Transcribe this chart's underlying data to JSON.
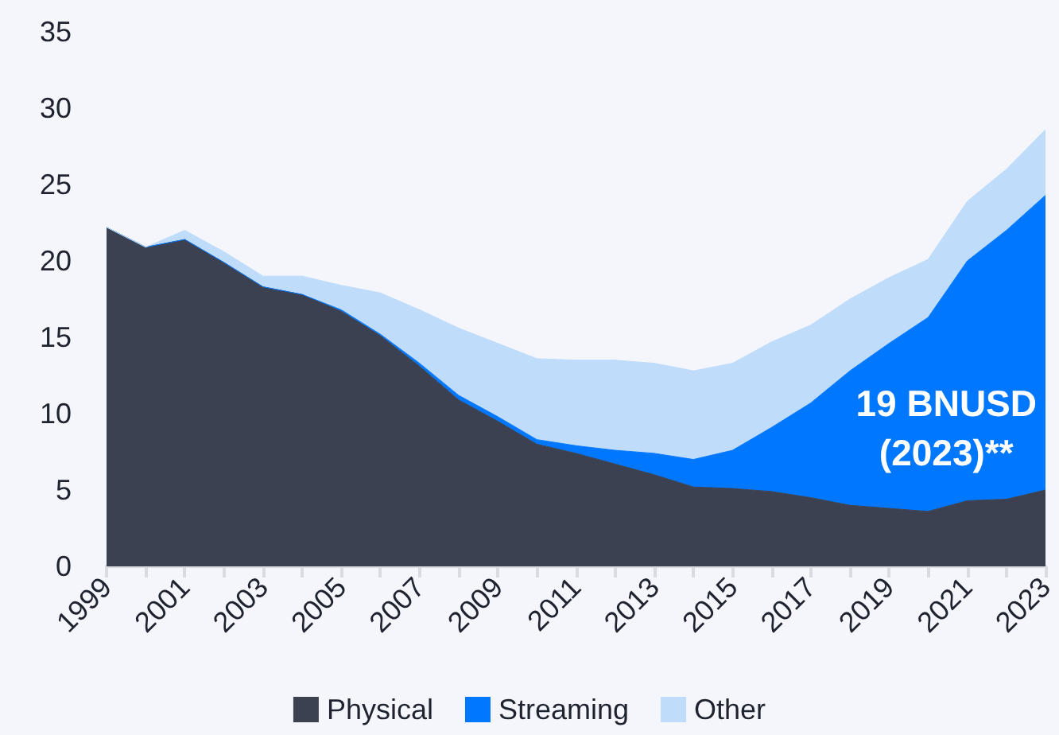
{
  "chart_data": {
    "type": "area",
    "stacked": true,
    "x": [
      1999,
      2000,
      2001,
      2002,
      2003,
      2004,
      2005,
      2006,
      2007,
      2008,
      2009,
      2010,
      2011,
      2012,
      2013,
      2014,
      2015,
      2016,
      2017,
      2018,
      2019,
      2020,
      2021,
      2022,
      2023
    ],
    "series": [
      {
        "name": "Physical",
        "color": "#3b4150",
        "values": [
          22.2,
          20.9,
          21.4,
          19.9,
          18.3,
          17.8,
          16.7,
          15.1,
          13.1,
          10.9,
          9.5,
          8.0,
          7.4,
          6.7,
          6.0,
          5.2,
          5.1,
          4.9,
          4.5,
          4.0,
          3.8,
          3.6,
          4.3,
          4.4,
          5.0
        ]
      },
      {
        "name": "Streaming",
        "color": "#0077ff",
        "values": [
          0,
          0,
          0,
          0,
          0,
          0,
          0.1,
          0.1,
          0.2,
          0.3,
          0.3,
          0.3,
          0.5,
          0.9,
          1.4,
          1.8,
          2.5,
          4.2,
          6.2,
          8.8,
          10.8,
          12.7,
          15.7,
          17.6,
          19.3
        ]
      },
      {
        "name": "Other",
        "color": "#bfdcfb",
        "values": [
          0,
          0,
          0.6,
          0.7,
          0.7,
          1.2,
          1.6,
          2.7,
          3.5,
          4.4,
          4.8,
          5.3,
          5.6,
          5.9,
          5.9,
          5.8,
          5.7,
          5.6,
          5.1,
          4.7,
          4.3,
          3.8,
          3.9,
          4.0,
          4.3
        ]
      }
    ],
    "xlim": [
      1999,
      2023
    ],
    "xticks": [
      1999,
      {
        "value": 2000,
        "label": null
      },
      2001,
      {
        "value": 2002,
        "label": null
      },
      2003,
      {
        "value": 2004,
        "label": null
      },
      2005,
      {
        "value": 2006,
        "label": null
      },
      2007,
      {
        "value": 2008,
        "label": null
      },
      2009,
      {
        "value": 2010,
        "label": null
      },
      2011,
      {
        "value": 2012,
        "label": null
      },
      2013,
      {
        "value": 2014,
        "label": null
      },
      2015,
      {
        "value": 2016,
        "label": null
      },
      2017,
      {
        "value": 2018,
        "label": null
      },
      2019,
      {
        "value": 2020,
        "label": null
      },
      2021,
      {
        "value": 2022,
        "label": null
      },
      2023
    ],
    "ylim": [
      0,
      35
    ],
    "yticks": [
      0,
      5,
      10,
      15,
      20,
      25,
      30,
      35
    ],
    "grid": false,
    "legend": "bottom",
    "marker": "none",
    "annotations": [
      "19 BNUSD (2023)**"
    ]
  }
}
